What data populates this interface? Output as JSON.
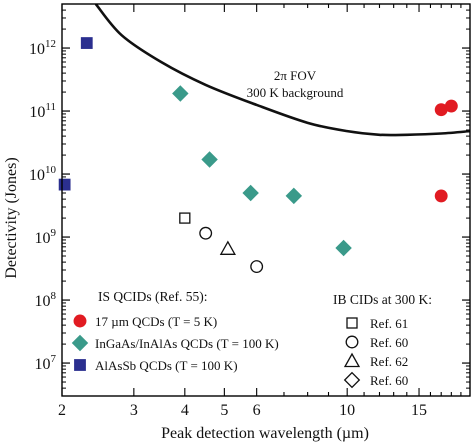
{
  "chart_data": {
    "type": "scatter",
    "xlabel": "Peak detection wavelength (µm)",
    "ylabel": "Detectivity (Jones)",
    "x_scale": "log",
    "y_scale": "log",
    "xlim": [
      2,
      20
    ],
    "ylim": [
      3000000.0,
      5000000000000.0
    ],
    "x_ticks": [
      {
        "value": 2,
        "label": "2"
      },
      {
        "value": 3,
        "label": "3"
      },
      {
        "value": 4,
        "label": "4"
      },
      {
        "value": 5,
        "label": "5"
      },
      {
        "value": 6,
        "label": "6"
      },
      {
        "value": 10,
        "label": "10"
      },
      {
        "value": 15,
        "label": "15"
      }
    ],
    "y_ticks": [
      {
        "exp": 7,
        "base": "10",
        "sup": "7"
      },
      {
        "exp": 8,
        "base": "10",
        "sup": "8"
      },
      {
        "exp": 9,
        "base": "10",
        "sup": "9"
      },
      {
        "exp": 10,
        "base": "10",
        "sup": "10"
      },
      {
        "exp": 11,
        "base": "10",
        "sup": "11"
      },
      {
        "exp": 12,
        "base": "10",
        "sup": "12"
      }
    ],
    "grid": false,
    "series": [
      {
        "name": "17 µm QCDs (T = 5 K)",
        "marker": "circle",
        "filled": true,
        "color": "#e11b22",
        "points": [
          [
            17.0,
            105000000000.0
          ],
          [
            18.0,
            120000000000.0
          ],
          [
            17.0,
            4500000000.0
          ]
        ]
      },
      {
        "name": "InGaAs/InAlAs QCDs (T = 100 K)",
        "marker": "diamond",
        "filled": true,
        "color": "#3a9a8a",
        "points": [
          [
            3.9,
            190000000000.0
          ],
          [
            4.6,
            17000000000.0
          ],
          [
            5.8,
            5000000000.0
          ],
          [
            7.4,
            4500000000.0
          ],
          [
            9.8,
            670000000.0
          ]
        ]
      },
      {
        "name": "AlAsSb QCDs (T = 100 K)",
        "marker": "square",
        "filled": true,
        "color": "#2b2f8f",
        "points": [
          [
            2.3,
            1200000000000.0
          ],
          [
            2.03,
            6800000000.0
          ]
        ]
      },
      {
        "name": "Ref. 61",
        "marker": "square",
        "filled": false,
        "color": "#111111",
        "points": [
          [
            4.0,
            2000000000.0
          ]
        ]
      },
      {
        "name": "Ref. 60",
        "marker": "circle",
        "filled": false,
        "color": "#111111",
        "points": [
          [
            4.5,
            1150000000.0
          ],
          [
            6.0,
            340000000.0
          ]
        ]
      },
      {
        "name": "Ref. 62",
        "marker": "triangle",
        "filled": false,
        "color": "#111111",
        "points": [
          [
            5.1,
            650000000.0
          ]
        ]
      }
    ],
    "limit_curve": {
      "points": [
        [
          2.42,
          5000000000000.0
        ],
        [
          2.8,
          1600000000000.0
        ],
        [
          3.5,
          600000000000.0
        ],
        [
          4.5,
          260000000000.0
        ],
        [
          6.0,
          125000000000.0
        ],
        [
          8.0,
          65000000000.0
        ],
        [
          10.0,
          48000000000.0
        ],
        [
          12.0,
          42000000000.0
        ],
        [
          14.0,
          42000000000.0
        ],
        [
          17.0,
          44000000000.0
        ],
        [
          20.0,
          48000000000.0
        ]
      ],
      "label_line1": "2π FOV",
      "label_line2": "300 K background"
    },
    "legend_left": {
      "title": "IS QCIDs (Ref. 55):",
      "entries": [
        "17 µm QCDs (T = 5 K)",
        "InGaAs/InAlAs QCDs (T = 100 K)",
        "AlAsSb QCDs (T = 100 K)"
      ],
      "position": "bottom-left"
    },
    "legend_right": {
      "title": "IB CIDs at 300 K:",
      "entries": [
        "Ref. 61",
        "Ref. 60",
        "Ref. 62",
        "Ref. 60"
      ],
      "markers": [
        "square",
        "circle",
        "triangle",
        "diamond"
      ],
      "position": "bottom-right"
    }
  }
}
